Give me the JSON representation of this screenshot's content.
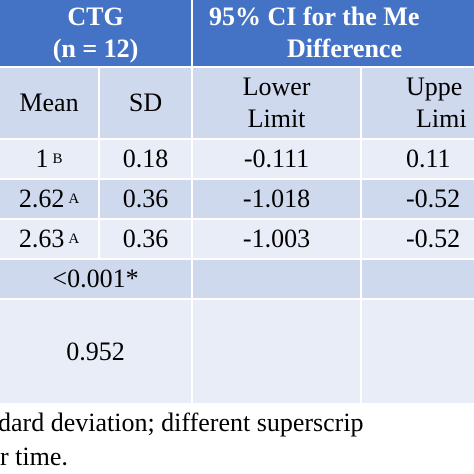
{
  "table": {
    "header": {
      "group1": [
        "CTG",
        "(n = 12)"
      ],
      "group2": [
        "95% CI for the Me",
        "Difference"
      ]
    },
    "subheader": [
      "Mean",
      "SD",
      "Lower",
      "Limit",
      "Uppe",
      "Limi"
    ],
    "rows": [
      {
        "mean": "1",
        "sup": "B",
        "sd": "0.18",
        "lower": "-0.111",
        "upper": "0.11"
      },
      {
        "mean": "2.62",
        "sup": "A",
        "sd": "0.36",
        "lower": "-1.018",
        "upper": "-0.52"
      },
      {
        "mean": "2.63",
        "sup": "A",
        "sd": "0.36",
        "lower": "-1.003",
        "upper": "-0.52"
      }
    ],
    "p1": "<0.001*",
    "p2": "0.952"
  },
  "footnote": [
    "dard deviation; different superscrip",
    "r time."
  ]
}
